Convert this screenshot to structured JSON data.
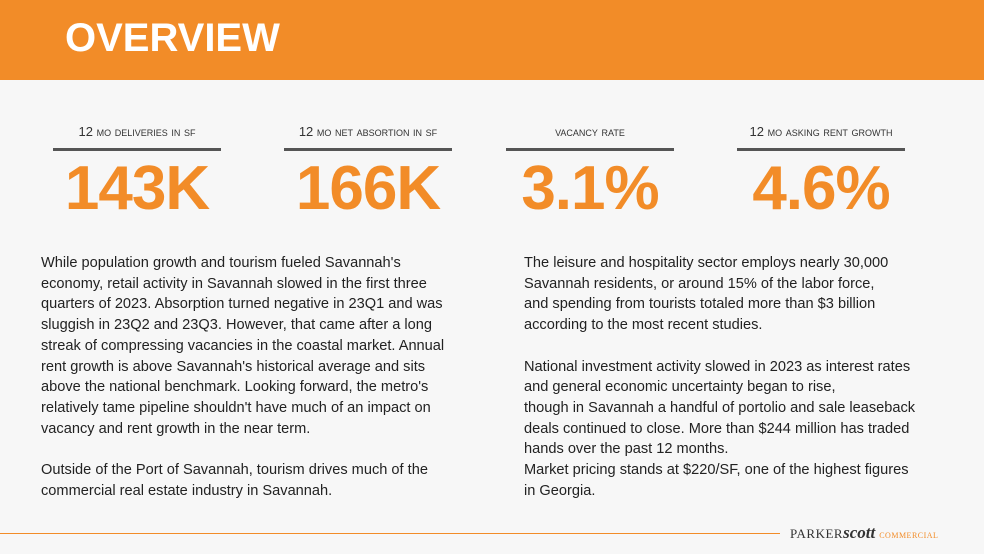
{
  "header": {
    "title": "OVERVIEW"
  },
  "stats": [
    {
      "label": "12 MO DELIVERIES IN SF",
      "value": "143K"
    },
    {
      "label": "12 MO NET ABSORTION IN SF",
      "value": "166K"
    },
    {
      "label": "VACANCY RATE",
      "value": "3.1%"
    },
    {
      "label": "12 MO ASKING RENT GROWTH",
      "value": "4.6%"
    }
  ],
  "columns": [
    {
      "paragraphs": [
        {
          "lines": [
            "While population growth and tourism fueled Savannah's",
            "economy, retail activity in Savannah slowed in the first three",
            "quarters of 2023. Absorption turned negative in 23Q1 and was",
            "sluggish in 23Q2 and 23Q3. However, that came after a long",
            "streak of compressing vacancies in the coastal market. Annual",
            "rent growth is above Savannah's historical average and sits",
            "above the national benchmark. Looking forward, the metro's",
            "relatively tame pipeline shouldn't have much of an impact on",
            "vacancy and rent growth in the near term."
          ]
        },
        {
          "lines": [
            "Outside of the Port of Savannah, tourism drives much of the",
            "commercial real estate industry in Savannah."
          ]
        }
      ]
    },
    {
      "paragraphs": [
        {
          "lines": [
            "The leisure and hospitality sector employs nearly 30,000",
            "Savannah residents, or around 15% of the labor force,",
            "and spending from tourists totaled more than $3 billion",
            "according to the most recent studies."
          ]
        },
        {
          "lines": [
            "National investment activity slowed in 2023 as interest rates",
            "and general economic uncertainty began to rise,",
            "though in Savannah a handful of portolio and sale leaseback",
            "deals continued to close. More than $244 million has traded",
            "hands over the past 12 months.",
            "Market pricing stands at $220/SF, one of the highest figures",
            "in Georgia."
          ]
        }
      ]
    }
  ],
  "footer": {
    "logo": {
      "parker": "PARKER",
      "scott": "scott",
      "commercial": "COMMERCIAL"
    }
  }
}
